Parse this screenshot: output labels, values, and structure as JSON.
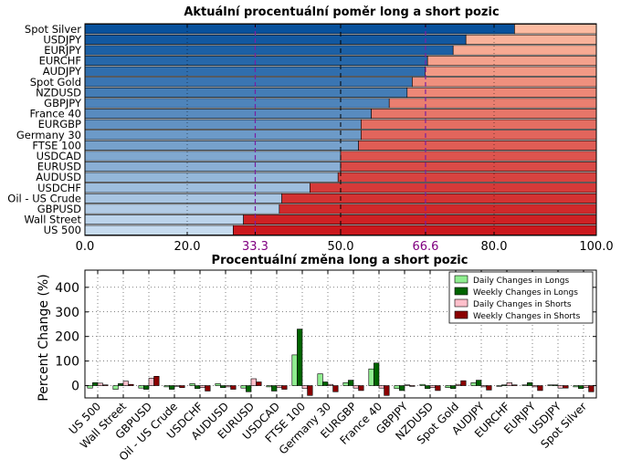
{
  "chart_data": [
    {
      "type": "bar",
      "orientation": "horizontal",
      "stacked": true,
      "title": "Aktuální procentuální poměr long a short pozic",
      "xlabel": "",
      "ylabel": "",
      "xlim": [
        0,
        100
      ],
      "xticks": [
        "0.0",
        "20.0",
        "33.3",
        "50.0",
        "66.6",
        "80.0",
        "100.0"
      ],
      "reference_lines": [
        33.3,
        50.0,
        66.6
      ],
      "categories": [
        "Spot Silver",
        "USDJPY",
        "EURJPY",
        "EURCHF",
        "AUDJPY",
        "Spot Gold",
        "NZDUSD",
        "GBPJPY",
        "France 40",
        "EURGBP",
        "Germany 30",
        "FTSE 100",
        "USDCAD",
        "EURUSD",
        "AUDUSD",
        "USDCHF",
        "Oil - US Crude",
        "GBPUSD",
        "Wall Street",
        "US 500"
      ],
      "series": [
        {
          "values": [
            84.0,
            74.5,
            72.0,
            67.0,
            66.5,
            64.0,
            63.0,
            59.5,
            56.0,
            54.0,
            54.0,
            53.5,
            50.0,
            50.0,
            49.5,
            44.0,
            38.5,
            38.0,
            31.0,
            29.0
          ]
        },
        {
          "values": [
            16.0,
            25.5,
            28.0,
            33.0,
            33.5,
            36.0,
            37.0,
            40.5,
            44.0,
            46.0,
            46.0,
            46.5,
            50.0,
            50.0,
            50.5,
            56.0,
            61.5,
            62.0,
            69.0,
            71.0
          ]
        }
      ],
      "colors": {
        "long_dark": "#08519c",
        "long_light": "#c6dbef",
        "short_dark": "#cb181d",
        "short_light": "#fcbba1",
        "reference_line": "#7b1fa2",
        "tick_highlight": "#800080"
      },
      "grid": true
    },
    {
      "type": "bar",
      "title": "Procentuální změna long a short pozic",
      "xlabel": "",
      "ylabel": "Percent Change (%)",
      "ylim": [
        -50,
        470
      ],
      "yticks": [
        "0",
        "100",
        "200",
        "300",
        "400"
      ],
      "categories": [
        "US 500",
        "Wall Street",
        "GBPUSD",
        "Oil - US Crude",
        "USDCHF",
        "AUDUSD",
        "EURUSD",
        "USDCAD",
        "FTSE 100",
        "Germany 30",
        "EURGBP",
        "France 40",
        "GBPJPY",
        "NZDUSD",
        "Spot Gold",
        "AUDJPY",
        "EURCHF",
        "EURJPY",
        "USDJPY",
        "Spot Silver"
      ],
      "series": [
        {
          "name": "Daily Changes in Longs",
          "values": [
            -10,
            -15,
            -10,
            -5,
            8,
            8,
            -10,
            -5,
            125,
            48,
            12,
            68,
            -12,
            5,
            -8,
            12,
            -3,
            3,
            3,
            -5
          ]
        },
        {
          "name": "Weekly Changes in Longs",
          "values": [
            12,
            8,
            -15,
            -15,
            -12,
            -8,
            -25,
            -22,
            230,
            15,
            22,
            92,
            -20,
            -12,
            -12,
            22,
            3,
            12,
            3,
            -12
          ]
        },
        {
          "name": "Daily Changes in Shorts",
          "values": [
            10,
            18,
            30,
            -3,
            -8,
            -5,
            28,
            -8,
            -12,
            5,
            -10,
            -10,
            3,
            -8,
            5,
            -5,
            12,
            -5,
            -10,
            -8
          ]
        },
        {
          "name": "Weekly Changes in Shorts",
          "values": [
            3,
            5,
            38,
            -8,
            -22,
            -15,
            15,
            -15,
            -40,
            -25,
            -20,
            -40,
            -3,
            -20,
            20,
            -18,
            3,
            -20,
            -10,
            -25
          ]
        }
      ],
      "colors": [
        "#90ee90",
        "#006400",
        "#ffc0cb",
        "#8b0000"
      ],
      "legend_position": "top-right",
      "grid": true
    }
  ]
}
